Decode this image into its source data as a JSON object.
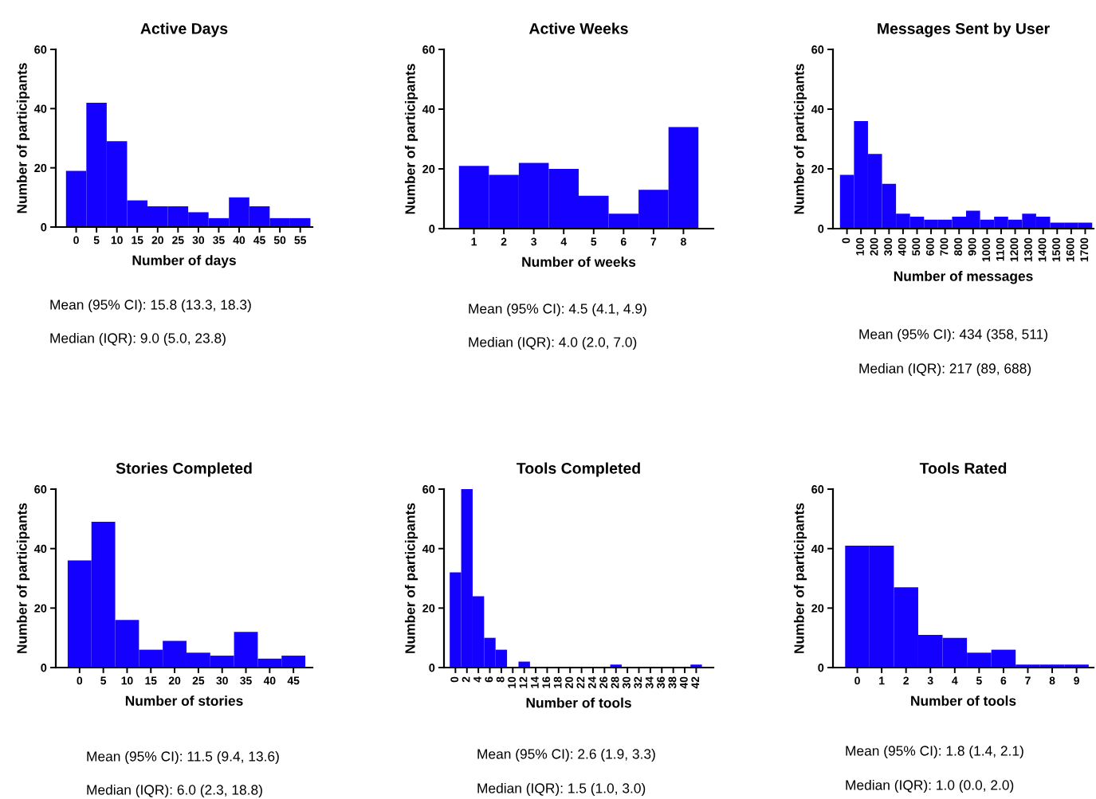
{
  "chart_data": [
    {
      "type": "histogram",
      "title": "Active Days",
      "xlabel": "Number of days",
      "ylabel": "Number of participants",
      "color": "#1400ff",
      "bins": [
        -2.5,
        2.5,
        7.5,
        12.5,
        17.5,
        22.5,
        27.5,
        32.5,
        37.5,
        42.5,
        47.5,
        52.5,
        57.5
      ],
      "values": [
        19,
        42,
        29,
        9,
        7,
        7,
        5,
        3,
        10,
        7,
        3,
        3
      ],
      "xlim": [
        -5,
        58
      ],
      "xticks": [
        0,
        5,
        10,
        15,
        20,
        25,
        30,
        35,
        40,
        45,
        50,
        55
      ],
      "ylim": [
        0,
        60
      ],
      "yticks": [
        0,
        20,
        40,
        60
      ],
      "grid": false,
      "annotations": [
        "Mean (95% CI): 15.8 (13.3, 18.3)",
        "Median (IQR): 9.0 (5.0, 23.8)"
      ]
    },
    {
      "type": "histogram",
      "title": "Active Weeks",
      "xlabel": "Number of weeks",
      "ylabel": "Number of participants",
      "color": "#1400ff",
      "bins": [
        0.5,
        1.5,
        2.5,
        3.5,
        4.5,
        5.5,
        6.5,
        7.5,
        8.5
      ],
      "values": [
        21,
        18,
        22,
        20,
        11,
        5,
        13,
        34
      ],
      "xlim": [
        0,
        9
      ],
      "xticks": [
        1,
        2,
        3,
        4,
        5,
        6,
        7,
        8
      ],
      "ylim": [
        0,
        60
      ],
      "yticks": [
        0,
        20,
        40,
        60
      ],
      "grid": false,
      "annotations": [
        "Mean (95% CI): 4.5 (4.1, 4.9)",
        "Median (IQR): 4.0 (2.0, 7.0)"
      ]
    },
    {
      "type": "histogram",
      "title": "Messages Sent by User",
      "xlabel": "Number of messages",
      "ylabel": "Number of participants",
      "color": "#1400ff",
      "bins": [
        -50,
        50,
        150,
        250,
        350,
        450,
        550,
        650,
        750,
        850,
        950,
        1050,
        1150,
        1250,
        1350,
        1450,
        1550,
        1650,
        1750
      ],
      "values": [
        18,
        36,
        25,
        15,
        5,
        4,
        3,
        3,
        4,
        6,
        3,
        4,
        3,
        5,
        4,
        2,
        2,
        2
      ],
      "xlim": [
        -100,
        1760
      ],
      "xticks": [
        0,
        100,
        200,
        300,
        400,
        500,
        600,
        700,
        800,
        900,
        1000,
        1100,
        1200,
        1300,
        1400,
        1500,
        1600,
        1700
      ],
      "ylim": [
        0,
        60
      ],
      "yticks": [
        0,
        20,
        40,
        60
      ],
      "grid": false,
      "annotations": [
        "Mean (95% CI): 434 (358, 511)",
        "Median (IQR): 217 (89, 688)"
      ]
    },
    {
      "type": "histogram",
      "title": "Stories Completed",
      "xlabel": "Number of stories",
      "ylabel": "Number of participants",
      "color": "#1400ff",
      "bins": [
        -2.5,
        2.5,
        7.5,
        12.5,
        17.5,
        22.5,
        27.5,
        32.5,
        37.5,
        42.5,
        47.5
      ],
      "values": [
        36,
        49,
        16,
        6,
        9,
        5,
        4,
        12,
        3,
        4
      ],
      "xlim": [
        -5,
        49
      ],
      "xticks": [
        0,
        5,
        10,
        15,
        20,
        25,
        30,
        35,
        40,
        45
      ],
      "ylim": [
        0,
        60
      ],
      "yticks": [
        0,
        20,
        40,
        60
      ],
      "grid": false,
      "annotations": [
        "Mean (95% CI): 11.5 (9.4, 13.6)",
        "Median (IQR): 6.0 (2.3, 18.8)"
      ]
    },
    {
      "type": "histogram",
      "title": "Tools Completed",
      "xlabel": "Number of tools",
      "ylabel": "Number of participants",
      "color": "#1400ff",
      "bins": [
        -1,
        1,
        3,
        5,
        7,
        9,
        11,
        13,
        15,
        17,
        19,
        21,
        23,
        25,
        27,
        29,
        31,
        33,
        35,
        37,
        39,
        41,
        43
      ],
      "values": [
        32,
        60,
        24,
        10,
        6,
        0,
        2,
        0,
        0,
        0,
        0,
        0,
        0,
        0,
        1,
        0,
        0,
        0,
        0,
        0,
        0,
        1
      ],
      "xlim": [
        -2,
        45
      ],
      "xticks": [
        0,
        2,
        4,
        6,
        8,
        10,
        12,
        14,
        16,
        18,
        20,
        22,
        24,
        26,
        28,
        30,
        32,
        34,
        36,
        38,
        40,
        42
      ],
      "ylim": [
        0,
        60
      ],
      "yticks": [
        0,
        20,
        40,
        60
      ],
      "grid": false,
      "annotations": [
        "Mean (95% CI): 2.6 (1.9, 3.3)",
        "Median (IQR): 1.5 (1.0, 3.0)"
      ]
    },
    {
      "type": "histogram",
      "title": "Tools Rated",
      "xlabel": "Number of tools",
      "ylabel": "Number of participants",
      "color": "#1400ff",
      "bins": [
        -0.5,
        0.5,
        1.5,
        2.5,
        3.5,
        4.5,
        5.5,
        6.5,
        7.5,
        8.5,
        9.5
      ],
      "values": [
        41,
        41,
        27,
        11,
        10,
        5,
        6,
        1,
        1,
        1
      ],
      "xlim": [
        -1,
        9.7
      ],
      "xticks": [
        0,
        1,
        2,
        3,
        4,
        5,
        6,
        7,
        8,
        9
      ],
      "ylim": [
        0,
        60
      ],
      "yticks": [
        0,
        20,
        40,
        60
      ],
      "grid": false,
      "annotations": [
        "Mean (95% CI): 1.8 (1.4, 2.1)",
        "Median (IQR): 1.0 (0.0, 2.0)"
      ]
    }
  ]
}
